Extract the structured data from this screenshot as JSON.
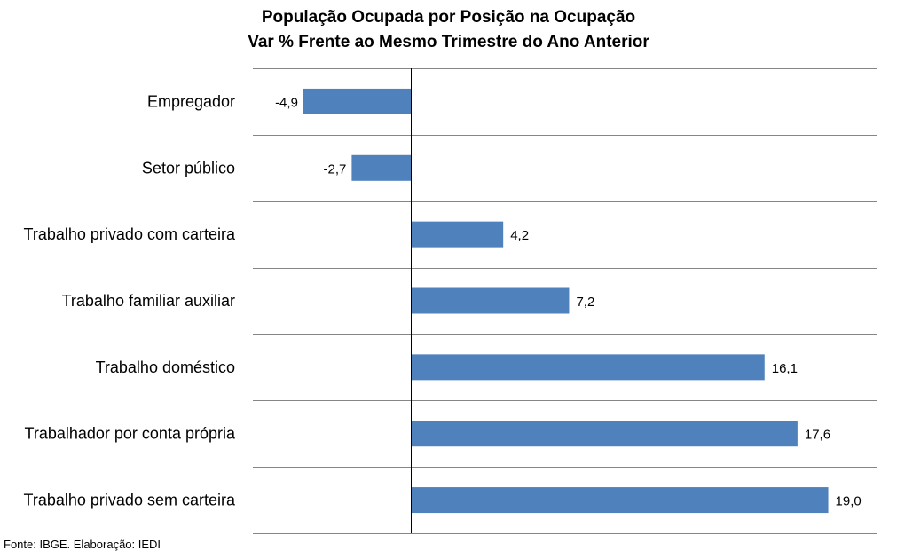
{
  "chart_data": {
    "type": "bar",
    "orientation": "horizontal",
    "title": "População Ocupada por Posição na Ocupação",
    "subtitle": "Var % Frente ao Mesmo Trimestre do Ano Anterior",
    "categories": [
      "Empregador",
      "Setor público",
      "Trabalho privado com carteira",
      "Trabalho familiar auxiliar",
      "Trabalho doméstico",
      "Trabalhador por conta própria",
      "Trabalho privado sem carteira"
    ],
    "values": [
      -4.9,
      -2.7,
      4.2,
      7.2,
      16.1,
      17.6,
      19.0
    ],
    "value_labels": [
      "-4,9",
      "-2,7",
      "4,2",
      "7,2",
      "16,1",
      "17,6",
      "19,0"
    ],
    "xlim": [
      -7.2,
      21.2
    ],
    "grid": true,
    "legend": "none",
    "bar_color": "#4F81BD"
  },
  "source_note": "Fonte: IBGE. Elaboração: IEDI"
}
